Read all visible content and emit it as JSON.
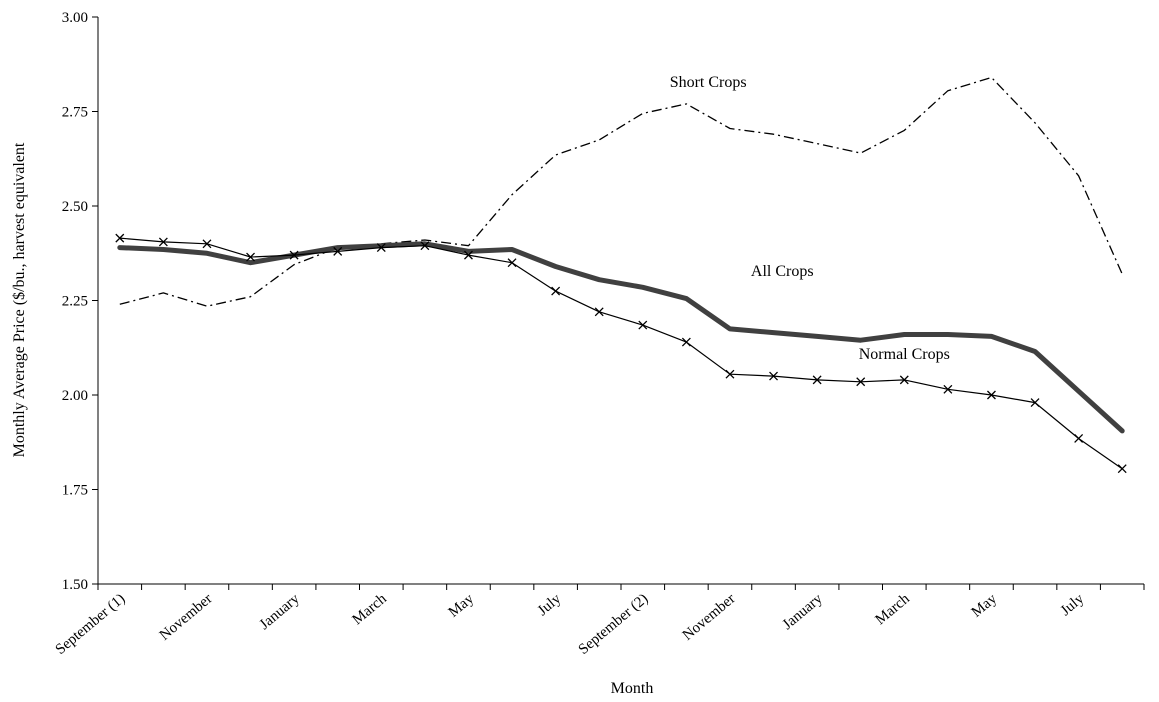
{
  "chart_data": {
    "type": "line",
    "xlabel": "Month",
    "ylabel": "Monthly Average Price ($/bu., harvest equivalent",
    "ylim": [
      1.5,
      3.0
    ],
    "yticks": [
      "3.00",
      "2.75",
      "2.50",
      "2.25",
      "2.00",
      "1.75",
      "1.50"
    ],
    "ytick_values": [
      3.0,
      2.75,
      2.5,
      2.25,
      2.0,
      1.75,
      1.5
    ],
    "x_labels": [
      "September (1)",
      "November",
      "January",
      "March",
      "May",
      "July",
      "September (2)",
      "November",
      "January",
      "March",
      "May",
      "July"
    ],
    "x_label_positions": [
      1,
      3,
      5,
      7,
      9,
      11,
      13,
      15,
      17,
      19,
      21,
      23
    ],
    "x_count": 24,
    "grid": false,
    "legend": "none",
    "series": [
      {
        "name": "Short Crops",
        "style": "dash-dot",
        "color": "#000000",
        "values": [
          2.24,
          2.27,
          2.235,
          2.26,
          2.345,
          2.39,
          2.4,
          2.41,
          2.395,
          2.53,
          2.635,
          2.675,
          2.745,
          2.77,
          2.705,
          2.69,
          2.665,
          2.64,
          2.7,
          2.805,
          2.84,
          2.72,
          2.58,
          2.32
        ]
      },
      {
        "name": "All Crops",
        "style": "thick",
        "color": "#404040",
        "values": [
          2.39,
          2.385,
          2.375,
          2.35,
          2.37,
          2.39,
          2.395,
          2.4,
          2.38,
          2.385,
          2.34,
          2.305,
          2.285,
          2.255,
          2.175,
          2.165,
          2.155,
          2.145,
          2.16,
          2.16,
          2.155,
          2.115,
          2.01,
          1.905
        ]
      },
      {
        "name": "Normal Crops",
        "style": "x-marker",
        "color": "#000000",
        "values": [
          2.415,
          2.405,
          2.4,
          2.365,
          2.37,
          2.38,
          2.39,
          2.395,
          2.37,
          2.35,
          2.275,
          2.22,
          2.185,
          2.14,
          2.055,
          2.05,
          2.04,
          2.035,
          2.04,
          2.015,
          2.0,
          1.98,
          1.885,
          1.805
        ]
      }
    ],
    "annotations": [
      {
        "text": "Short Crops",
        "series": "Short Crops",
        "x": 14.5,
        "y": 2.815
      },
      {
        "text": "All Crops",
        "series": "All Crops",
        "x": 16.2,
        "y": 2.315
      },
      {
        "text": "Normal Crops",
        "series": "Normal Crops",
        "x": 19.0,
        "y": 2.095
      }
    ]
  }
}
